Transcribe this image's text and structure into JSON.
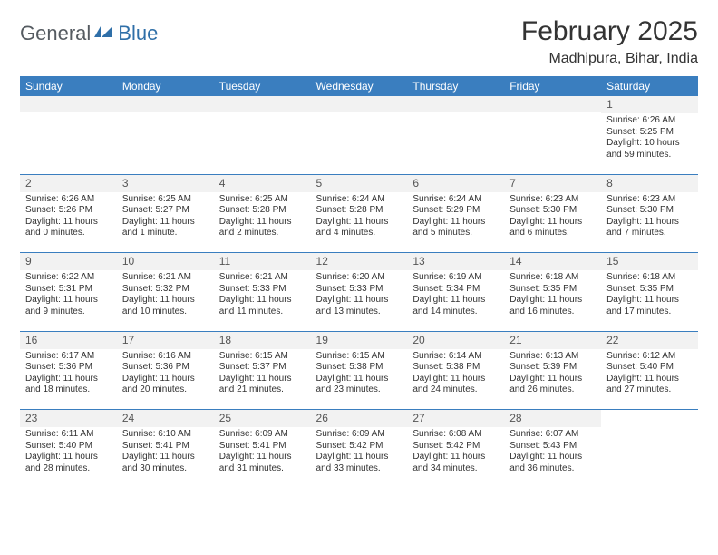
{
  "logo": {
    "text1": "General",
    "text2": "Blue"
  },
  "title": "February 2025",
  "subtitle": "Madhipura, Bihar, India",
  "colors": {
    "header_bg": "#3a7ebf",
    "header_fg": "#ffffff",
    "separator": "#3a7ebf",
    "daynum_bg": "#f2f2f2",
    "text": "#333333"
  },
  "dayNames": [
    "Sunday",
    "Monday",
    "Tuesday",
    "Wednesday",
    "Thursday",
    "Friday",
    "Saturday"
  ],
  "weeks": [
    [
      null,
      null,
      null,
      null,
      null,
      null,
      {
        "n": "1",
        "sunrise": "6:26 AM",
        "sunset": "5:25 PM",
        "daylight": "10 hours and 59 minutes."
      }
    ],
    [
      {
        "n": "2",
        "sunrise": "6:26 AM",
        "sunset": "5:26 PM",
        "daylight": "11 hours and 0 minutes."
      },
      {
        "n": "3",
        "sunrise": "6:25 AM",
        "sunset": "5:27 PM",
        "daylight": "11 hours and 1 minute."
      },
      {
        "n": "4",
        "sunrise": "6:25 AM",
        "sunset": "5:28 PM",
        "daylight": "11 hours and 2 minutes."
      },
      {
        "n": "5",
        "sunrise": "6:24 AM",
        "sunset": "5:28 PM",
        "daylight": "11 hours and 4 minutes."
      },
      {
        "n": "6",
        "sunrise": "6:24 AM",
        "sunset": "5:29 PM",
        "daylight": "11 hours and 5 minutes."
      },
      {
        "n": "7",
        "sunrise": "6:23 AM",
        "sunset": "5:30 PM",
        "daylight": "11 hours and 6 minutes."
      },
      {
        "n": "8",
        "sunrise": "6:23 AM",
        "sunset": "5:30 PM",
        "daylight": "11 hours and 7 minutes."
      }
    ],
    [
      {
        "n": "9",
        "sunrise": "6:22 AM",
        "sunset": "5:31 PM",
        "daylight": "11 hours and 9 minutes."
      },
      {
        "n": "10",
        "sunrise": "6:21 AM",
        "sunset": "5:32 PM",
        "daylight": "11 hours and 10 minutes."
      },
      {
        "n": "11",
        "sunrise": "6:21 AM",
        "sunset": "5:33 PM",
        "daylight": "11 hours and 11 minutes."
      },
      {
        "n": "12",
        "sunrise": "6:20 AM",
        "sunset": "5:33 PM",
        "daylight": "11 hours and 13 minutes."
      },
      {
        "n": "13",
        "sunrise": "6:19 AM",
        "sunset": "5:34 PM",
        "daylight": "11 hours and 14 minutes."
      },
      {
        "n": "14",
        "sunrise": "6:18 AM",
        "sunset": "5:35 PM",
        "daylight": "11 hours and 16 minutes."
      },
      {
        "n": "15",
        "sunrise": "6:18 AM",
        "sunset": "5:35 PM",
        "daylight": "11 hours and 17 minutes."
      }
    ],
    [
      {
        "n": "16",
        "sunrise": "6:17 AM",
        "sunset": "5:36 PM",
        "daylight": "11 hours and 18 minutes."
      },
      {
        "n": "17",
        "sunrise": "6:16 AM",
        "sunset": "5:36 PM",
        "daylight": "11 hours and 20 minutes."
      },
      {
        "n": "18",
        "sunrise": "6:15 AM",
        "sunset": "5:37 PM",
        "daylight": "11 hours and 21 minutes."
      },
      {
        "n": "19",
        "sunrise": "6:15 AM",
        "sunset": "5:38 PM",
        "daylight": "11 hours and 23 minutes."
      },
      {
        "n": "20",
        "sunrise": "6:14 AM",
        "sunset": "5:38 PM",
        "daylight": "11 hours and 24 minutes."
      },
      {
        "n": "21",
        "sunrise": "6:13 AM",
        "sunset": "5:39 PM",
        "daylight": "11 hours and 26 minutes."
      },
      {
        "n": "22",
        "sunrise": "6:12 AM",
        "sunset": "5:40 PM",
        "daylight": "11 hours and 27 minutes."
      }
    ],
    [
      {
        "n": "23",
        "sunrise": "6:11 AM",
        "sunset": "5:40 PM",
        "daylight": "11 hours and 28 minutes."
      },
      {
        "n": "24",
        "sunrise": "6:10 AM",
        "sunset": "5:41 PM",
        "daylight": "11 hours and 30 minutes."
      },
      {
        "n": "25",
        "sunrise": "6:09 AM",
        "sunset": "5:41 PM",
        "daylight": "11 hours and 31 minutes."
      },
      {
        "n": "26",
        "sunrise": "6:09 AM",
        "sunset": "5:42 PM",
        "daylight": "11 hours and 33 minutes."
      },
      {
        "n": "27",
        "sunrise": "6:08 AM",
        "sunset": "5:42 PM",
        "daylight": "11 hours and 34 minutes."
      },
      {
        "n": "28",
        "sunrise": "6:07 AM",
        "sunset": "5:43 PM",
        "daylight": "11 hours and 36 minutes."
      },
      null
    ]
  ],
  "labels": {
    "sunrise": "Sunrise:",
    "sunset": "Sunset:",
    "daylight": "Daylight:"
  }
}
